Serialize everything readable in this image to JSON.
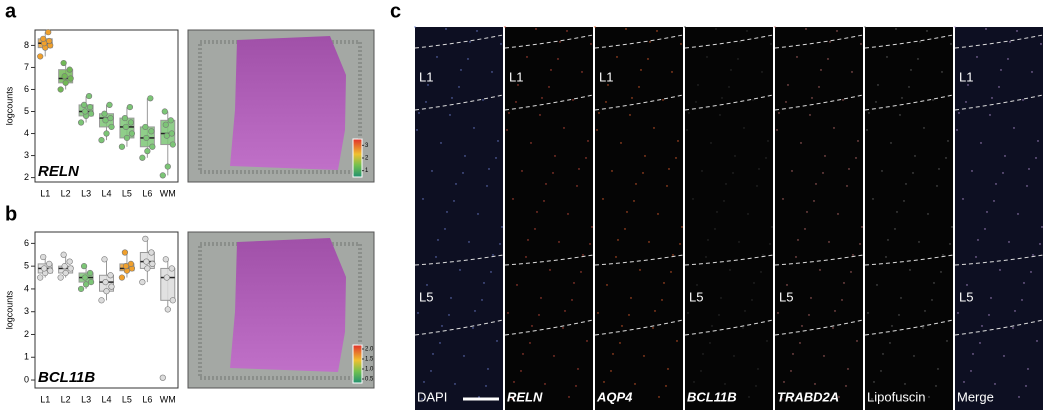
{
  "panel_labels": [
    "a",
    "b",
    "c"
  ],
  "chart_data": [
    {
      "type": "box",
      "gene": "RELN",
      "ylabel": "logcounts",
      "categories": [
        "L1",
        "L2",
        "L3",
        "L4",
        "L5",
        "L6",
        "WM"
      ],
      "colors": [
        "#f0a02c",
        "#72b856",
        "#7cc576",
        "#7cc576",
        "#7cc576",
        "#7cc576",
        "#7cc576"
      ],
      "boxes": [
        [
          7.5,
          7.9,
          8.1,
          8.3,
          8.6
        ],
        [
          6.0,
          6.3,
          6.5,
          6.9,
          7.2
        ],
        [
          4.5,
          4.8,
          5.0,
          5.3,
          5.7
        ],
        [
          3.7,
          4.3,
          4.7,
          4.9,
          5.3
        ],
        [
          3.4,
          3.8,
          4.3,
          4.7,
          5.2
        ],
        [
          2.9,
          3.4,
          3.8,
          4.3,
          5.6
        ],
        [
          2.1,
          3.5,
          4.0,
          4.6,
          5.0
        ]
      ],
      "points": [
        [
          7.5,
          7.9,
          8.0,
          8.1,
          8.2,
          8.3,
          8.6
        ],
        [
          6.0,
          6.3,
          6.5,
          6.6,
          6.9,
          7.2
        ],
        [
          4.5,
          4.8,
          4.9,
          5.0,
          5.2,
          5.3,
          5.7
        ],
        [
          3.7,
          4.0,
          4.3,
          4.6,
          4.7,
          4.9,
          5.3
        ],
        [
          3.4,
          3.8,
          4.0,
          4.3,
          4.5,
          4.7,
          5.2
        ],
        [
          2.9,
          3.2,
          3.4,
          3.8,
          4.1,
          4.3,
          5.6
        ],
        [
          2.1,
          2.5,
          3.5,
          3.9,
          4.0,
          4.4,
          4.6,
          5.0
        ]
      ],
      "ylim": [
        1.8,
        8.7
      ],
      "yticks": [
        2,
        3,
        4,
        5,
        6,
        7,
        8
      ],
      "legend_lim": [
        0.5,
        3.5
      ],
      "legend_ticks": [
        3,
        2,
        1
      ]
    },
    {
      "type": "box",
      "gene": "BCL11B",
      "ylabel": "logcounts",
      "categories": [
        "L1",
        "L2",
        "L3",
        "L4",
        "L5",
        "L6",
        "WM"
      ],
      "colors": [
        "#dcdcdc",
        "#dcdcdc",
        "#7cc576",
        "#dcdcdc",
        "#f0a02c",
        "#dcdcdc",
        "#dcdcdc"
      ],
      "boxes": [
        [
          4.5,
          4.7,
          4.9,
          5.1,
          5.4
        ],
        [
          4.5,
          4.7,
          4.9,
          5.0,
          5.5
        ],
        [
          4.0,
          4.3,
          4.5,
          4.7,
          5.0
        ],
        [
          3.5,
          3.9,
          4.3,
          4.6,
          5.3
        ],
        [
          4.5,
          4.8,
          4.9,
          5.1,
          5.6
        ],
        [
          4.3,
          4.9,
          5.2,
          5.6,
          6.2
        ],
        [
          3.1,
          3.5,
          4.5,
          4.9,
          5.3
        ]
      ],
      "points": [
        [
          4.5,
          4.7,
          4.8,
          4.9,
          5.1,
          5.4
        ],
        [
          4.5,
          4.7,
          4.9,
          5.0,
          5.2,
          5.5
        ],
        [
          4.0,
          4.2,
          4.3,
          4.5,
          4.7,
          5.0
        ],
        [
          3.5,
          3.9,
          4.1,
          4.3,
          4.6,
          5.3
        ],
        [
          4.5,
          4.8,
          4.9,
          5.0,
          5.1,
          5.6
        ],
        [
          4.3,
          4.9,
          5.1,
          5.2,
          5.6,
          6.2
        ],
        [
          0.1,
          3.1,
          3.5,
          4.5,
          4.9,
          5.3
        ]
      ],
      "ylim": [
        -0.35,
        6.5
      ],
      "yticks": [
        0,
        1,
        2,
        3,
        4,
        5,
        6
      ],
      "legend_lim": [
        0.3,
        2.2
      ],
      "legend_ticks": [
        {
          "value": 2,
          "label": "2.0"
        },
        {
          "value": 1.5,
          "label": "1.5"
        },
        {
          "value": 1,
          "label": "1.0"
        },
        {
          "value": 0.5,
          "label": "0.5"
        }
      ]
    }
  ],
  "panel_c": {
    "channels": [
      "DAPI",
      "RELN",
      "AQP4",
      "BCL11B",
      "TRABD2A",
      "Lipofuscin",
      "Merge"
    ],
    "layers": [
      "L1",
      "L5"
    ]
  }
}
